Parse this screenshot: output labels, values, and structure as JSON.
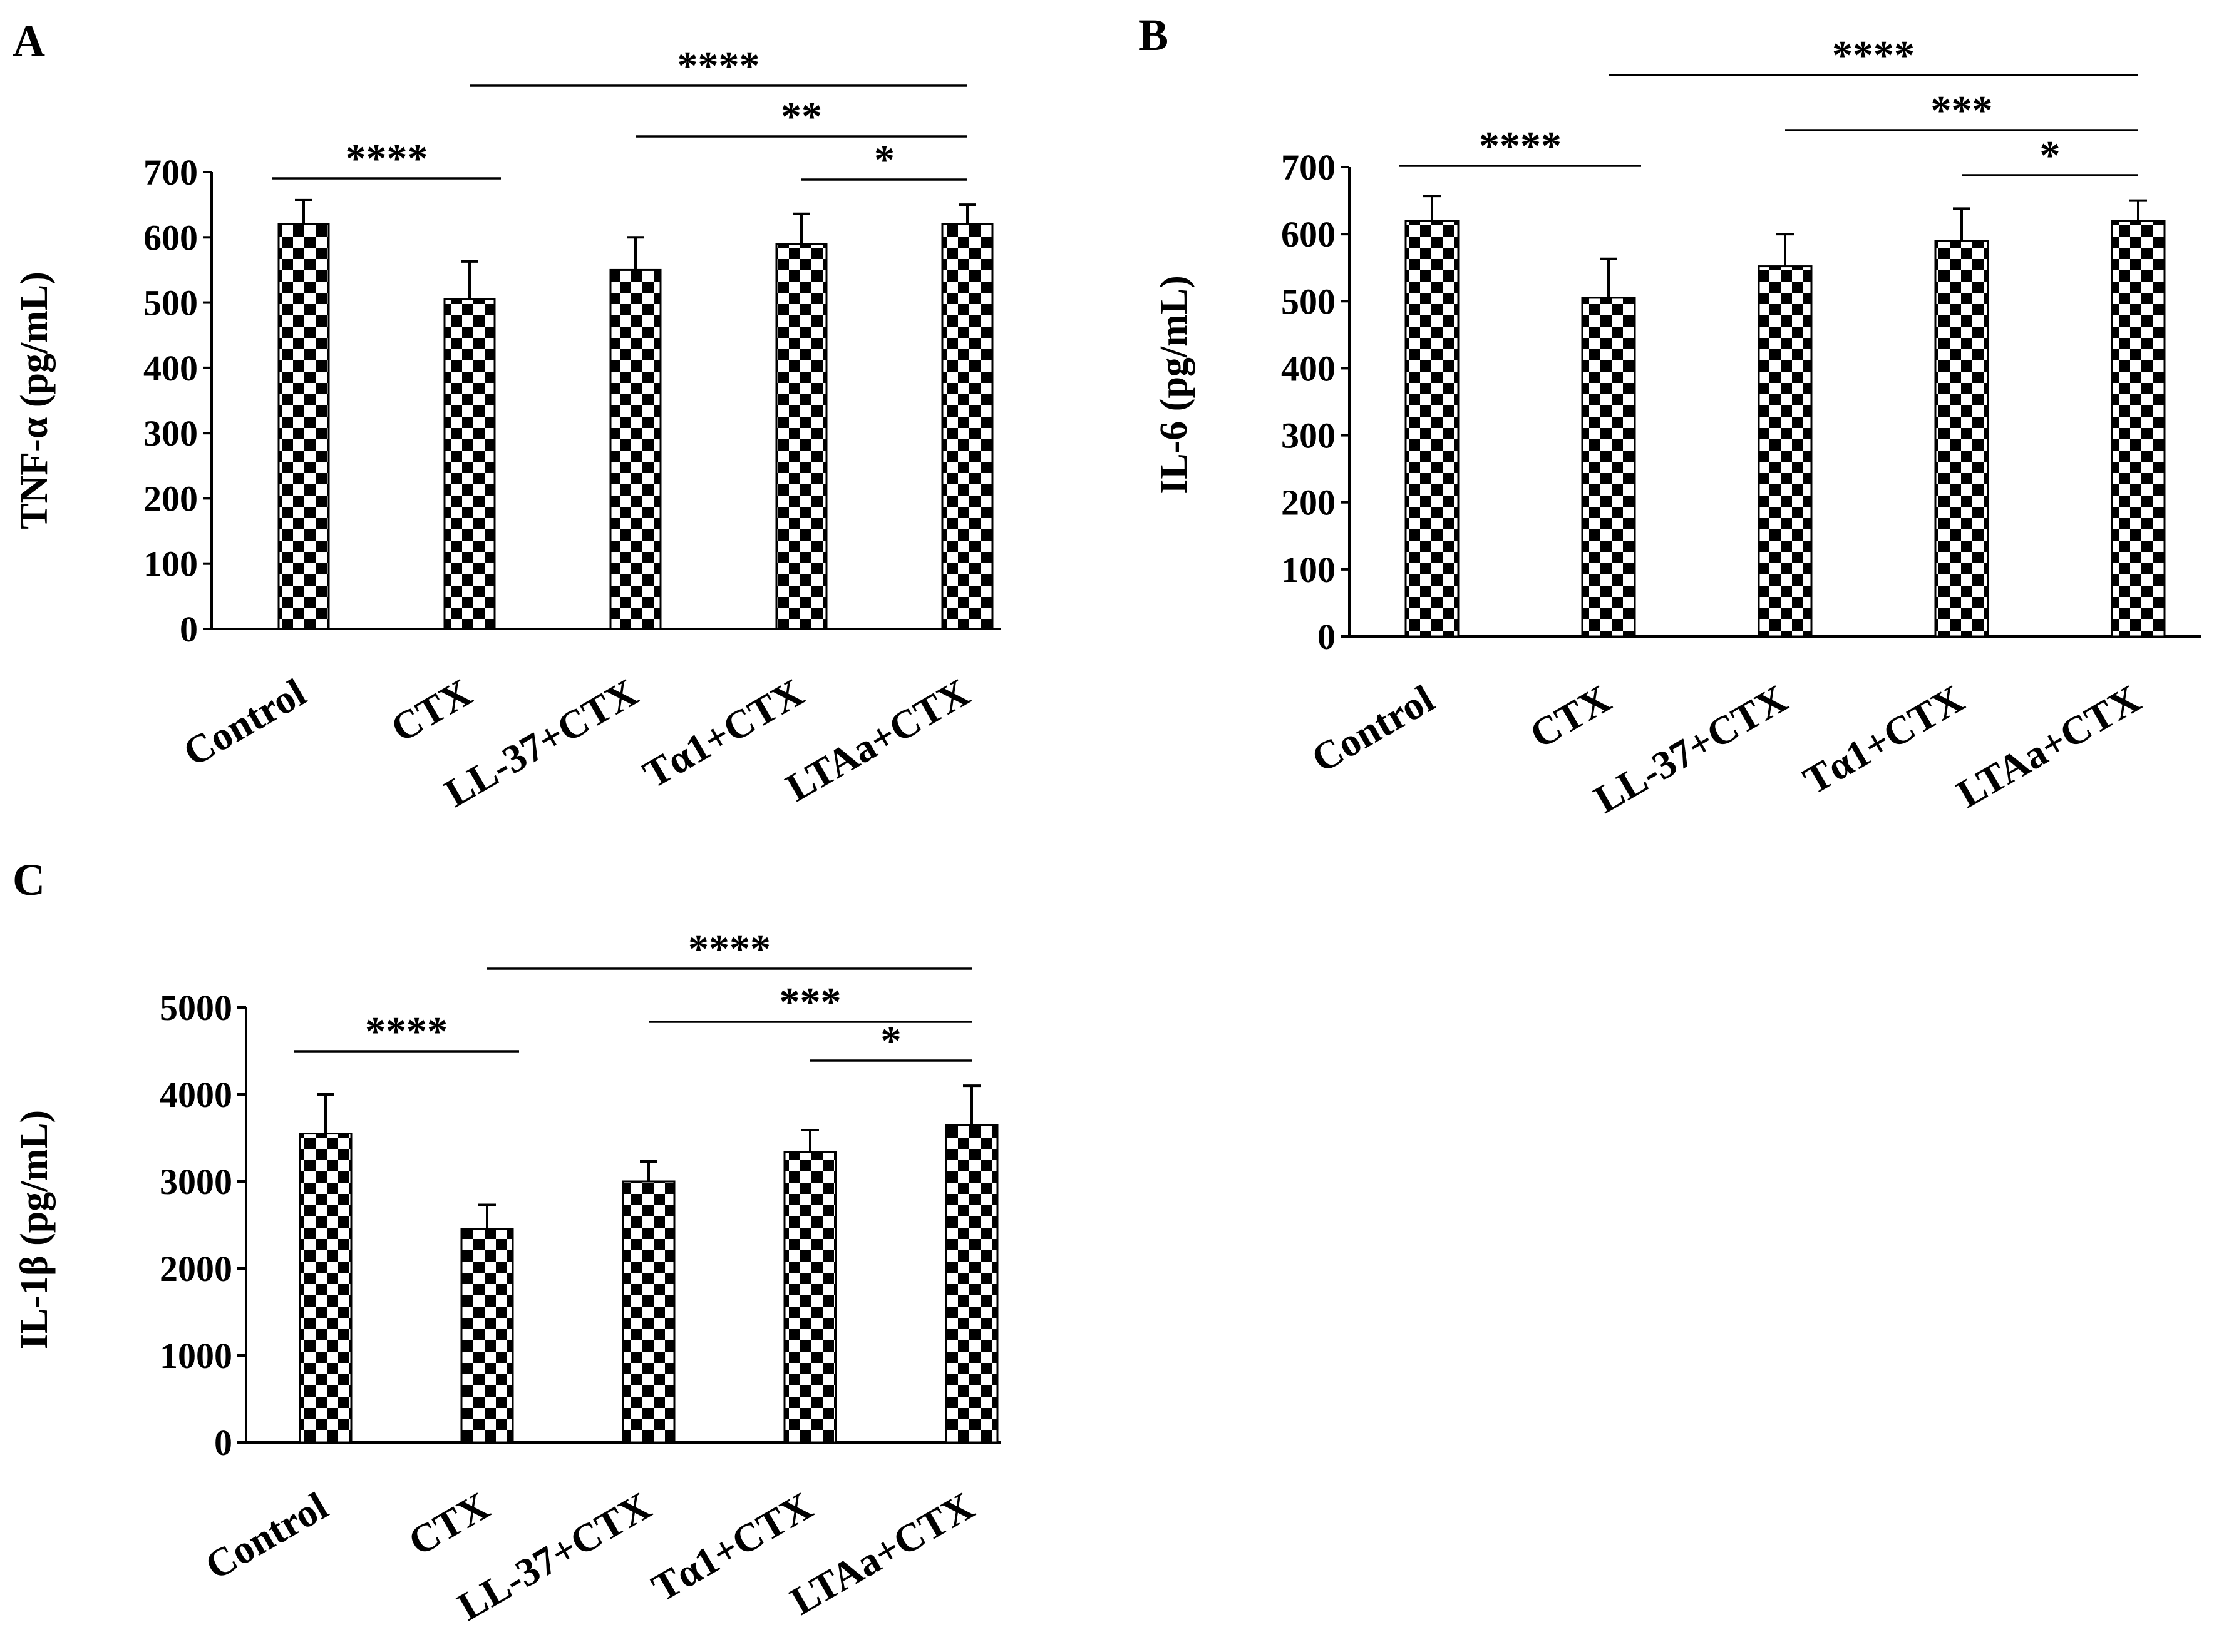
{
  "figure": {
    "panels": [
      "A",
      "B",
      "C"
    ]
  },
  "colors": {
    "bar_fill_dark": "#000000",
    "bar_fill_light": "#ffffff",
    "axis": "#000000"
  },
  "chart_data": [
    {
      "panel": "A",
      "type": "bar",
      "title": "",
      "xlabel": "",
      "ylabel": "TNF-α (pg/mL)",
      "ylim": [
        0,
        700
      ],
      "yticks": [
        0,
        100,
        200,
        300,
        400,
        500,
        600,
        700
      ],
      "categories": [
        "Control",
        "CTX",
        "LL-37+CTX",
        "Tα1+CTX",
        "LTAa+CTX"
      ],
      "values": [
        620,
        505,
        550,
        590,
        620
      ],
      "errors": [
        37,
        58,
        50,
        46,
        30
      ],
      "fill_pattern": "checkerboard",
      "significance": [
        {
          "from": 0,
          "to": 1,
          "label": "****"
        },
        {
          "from": 1,
          "to": 4,
          "label": "****"
        },
        {
          "from": 2,
          "to": 4,
          "label": "**"
        },
        {
          "from": 3,
          "to": 4,
          "label": "*"
        }
      ]
    },
    {
      "panel": "B",
      "type": "bar",
      "title": "",
      "xlabel": "",
      "ylabel": "IL-6 (pg/mL)",
      "ylim": [
        0,
        700
      ],
      "yticks": [
        0,
        100,
        200,
        300,
        400,
        500,
        600,
        700
      ],
      "categories": [
        "Control",
        "CTX",
        "LL-37+CTX",
        "Tα1+CTX",
        "LTAa+CTX"
      ],
      "values": [
        620,
        505,
        552,
        590,
        620
      ],
      "errors": [
        37,
        58,
        48,
        48,
        30
      ],
      "fill_pattern": "checkerboard",
      "significance": [
        {
          "from": 0,
          "to": 1,
          "label": "****"
        },
        {
          "from": 1,
          "to": 4,
          "label": "****"
        },
        {
          "from": 2,
          "to": 4,
          "label": "***"
        },
        {
          "from": 3,
          "to": 4,
          "label": "*"
        }
      ]
    },
    {
      "panel": "C",
      "type": "bar",
      "title": "",
      "xlabel": "",
      "ylabel": "IL-1β (pg/mL)",
      "ylim": [
        0,
        5000
      ],
      "yticks": [
        0,
        1000,
        2000,
        3000,
        4000,
        5000
      ],
      "categories": [
        "Control",
        "CTX",
        "LL-37+CTX",
        "Tα1+CTX",
        "LTAa+CTX"
      ],
      "values": [
        3550,
        2450,
        3000,
        3340,
        3650
      ],
      "errors": [
        450,
        280,
        230,
        250,
        450
      ],
      "fill_pattern": "checkerboard",
      "significance": [
        {
          "from": 0,
          "to": 1,
          "label": "****"
        },
        {
          "from": 1,
          "to": 4,
          "label": "****"
        },
        {
          "from": 2,
          "to": 4,
          "label": "***"
        },
        {
          "from": 3,
          "to": 4,
          "label": "*"
        }
      ]
    }
  ]
}
